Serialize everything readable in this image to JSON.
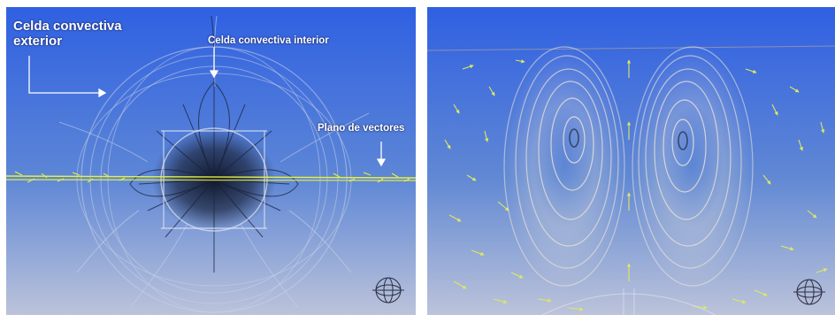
{
  "labels": {
    "outer_cell": "Celda convectiva exterior",
    "inner_cell": "Celda convectiva interior",
    "vector_plane": "Plano de vectores"
  },
  "icons": {
    "left": "orientation-gizmo-icon",
    "right": "orientation-gizmo-icon"
  },
  "colors": {
    "sky_top": "#2f5fe0",
    "sky_bottom": "#b8c0da",
    "vectors": "#e8f040",
    "streamlines_dark": "#1a2238",
    "streamlines_light": "#f4ead8"
  }
}
